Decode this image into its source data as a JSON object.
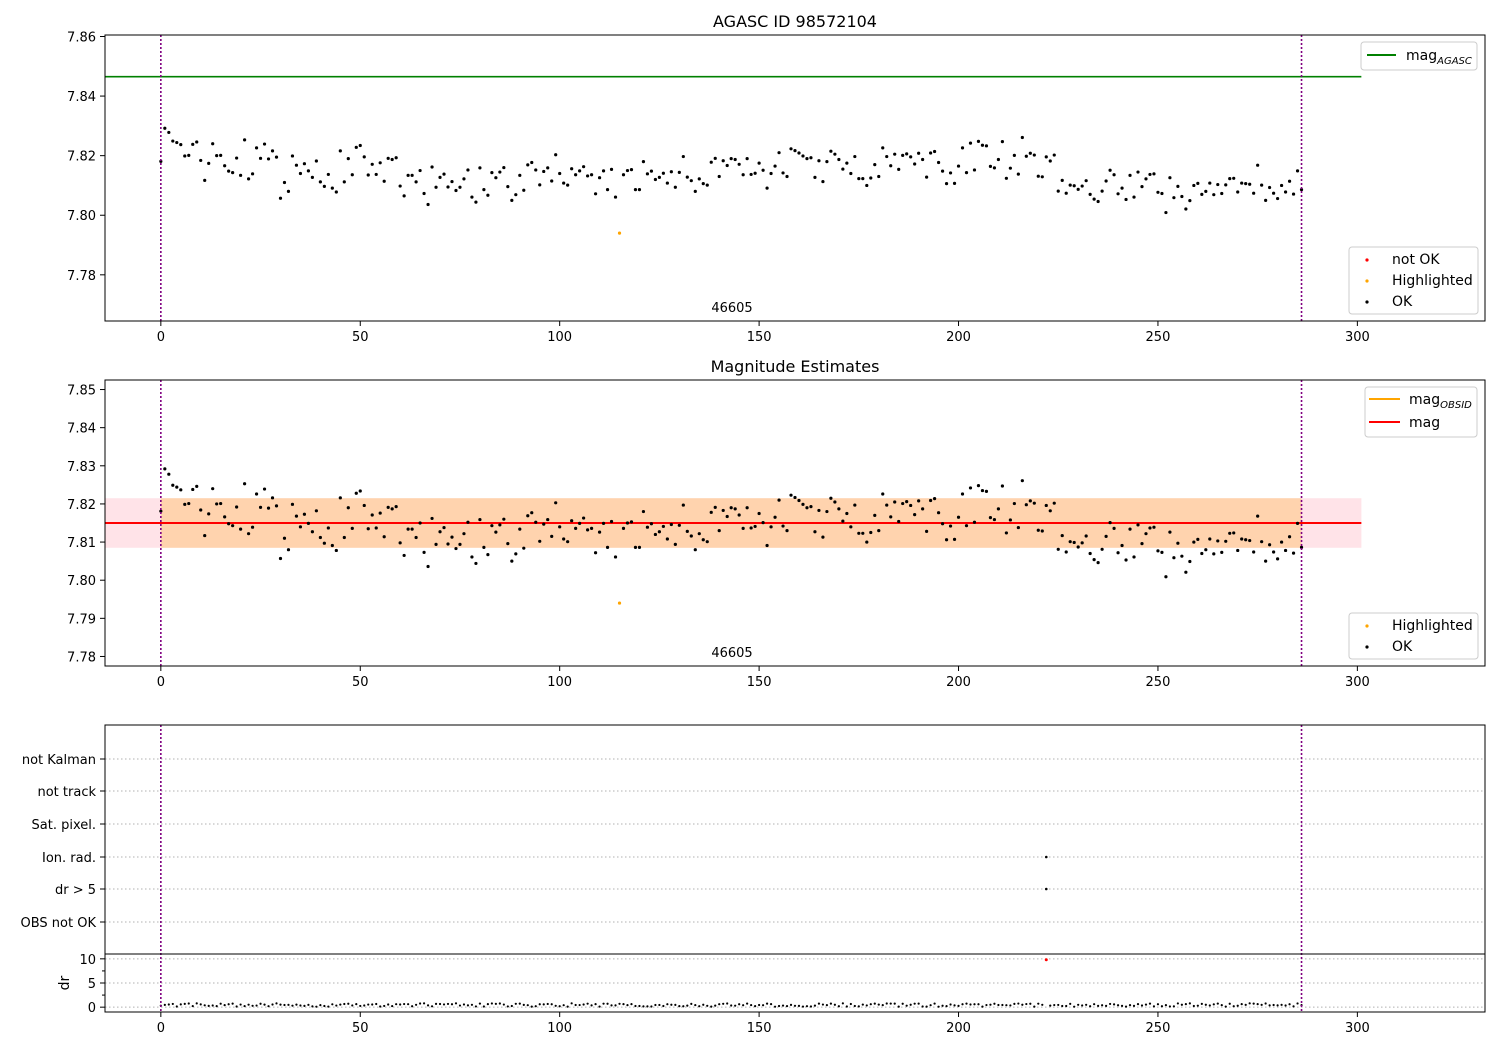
{
  "chart_data": [
    {
      "type": "scatter",
      "title": "AGASC ID 98572104",
      "xlim": [
        -14,
        332
      ],
      "ylim": [
        7.7645,
        7.8605
      ],
      "yticks": [
        "7.78",
        "7.80",
        "7.82",
        "7.84",
        "7.86"
      ],
      "xticks": [
        "0",
        "50",
        "100",
        "150",
        "200",
        "250",
        "300"
      ],
      "obsid_label": "46605",
      "obsid_x": 143,
      "boundaries_x": [
        0,
        286
      ],
      "reference_line": {
        "name": "mag",
        "subscript": "AGASC",
        "y": 7.8465,
        "x_range": [
          -14,
          301
        ],
        "color": "#008000"
      },
      "series": [
        {
          "name": "not OK",
          "color": "#ff0000",
          "x": [],
          "y": []
        },
        {
          "name": "Highlighted",
          "color": "#ffa500",
          "x": [
            115
          ],
          "y": [
            7.794
          ]
        },
        {
          "name": "OK",
          "color": "#000000",
          "x": [],
          "y": []
        }
      ],
      "legend_top_right": true,
      "legend_bottom_right": true
    },
    {
      "type": "scatter",
      "title": "Magnitude Estimates",
      "xlim": [
        -14,
        332
      ],
      "ylim": [
        7.7775,
        7.8525
      ],
      "yticks": [
        "7.78",
        "7.79",
        "7.80",
        "7.81",
        "7.82",
        "7.83",
        "7.84",
        "7.85"
      ],
      "xticks": [
        "0",
        "50",
        "100",
        "150",
        "200",
        "250",
        "300"
      ],
      "obsid_label": "46605",
      "obsid_x": 143,
      "boundaries_x": [
        0,
        286
      ],
      "bands": [
        {
          "x_range": [
            -14,
            301
          ],
          "y_range": [
            7.8085,
            7.8215
          ],
          "color": "#ffc0cb"
        },
        {
          "x_range": [
            0,
            286
          ],
          "y_range": [
            7.8085,
            7.8215
          ],
          "color": "#ffa500"
        }
      ],
      "lines": [
        {
          "name": "mag",
          "subscript": "OBSID",
          "y": 7.815,
          "x_range": [
            0,
            286
          ],
          "color": "#ffa500"
        },
        {
          "name": "mag",
          "subscript": "",
          "y": 7.815,
          "x_range": [
            -14,
            301
          ],
          "color": "#ff0000"
        }
      ],
      "series": [
        {
          "name": "Highlighted",
          "color": "#ffa500",
          "x": [
            115
          ],
          "y": [
            7.794
          ]
        },
        {
          "name": "OK",
          "color": "#000000",
          "x": [],
          "y": []
        }
      ],
      "legend_top_right": true,
      "legend_bottom_right": true
    },
    {
      "type": "scatter",
      "title": "",
      "xlim": [
        -14,
        332
      ],
      "xticks": [
        "0",
        "50",
        "100",
        "150",
        "200",
        "250",
        "300"
      ],
      "boundaries_x": [
        0,
        286
      ],
      "flag_labels": [
        "not Kalman",
        "not track",
        "Sat. pixel.",
        "Ion. rad.",
        "dr > 5",
        "OBS not OK"
      ],
      "flag_points": [
        {
          "flag": "Ion. rad.",
          "x": 222
        },
        {
          "flag": "dr > 5",
          "x": 222
        }
      ],
      "dr": {
        "ylabel": "dr",
        "yticks": [
          "0",
          "5",
          "10"
        ],
        "ylim": [
          -1,
          11
        ],
        "outlier": {
          "x": 222,
          "y": 9.8,
          "color": "#ff0000"
        },
        "typical_range": [
          0.1,
          0.8
        ]
      }
    }
  ],
  "legend": {
    "top_panel_line": "mag",
    "top_panel_line_sub": "AGASC",
    "middle_panel_line1": "mag",
    "middle_panel_line1_sub": "OBSID",
    "middle_panel_line2": "mag",
    "not_ok": "not OK",
    "highlighted": "Highlighted",
    "ok": "OK"
  }
}
